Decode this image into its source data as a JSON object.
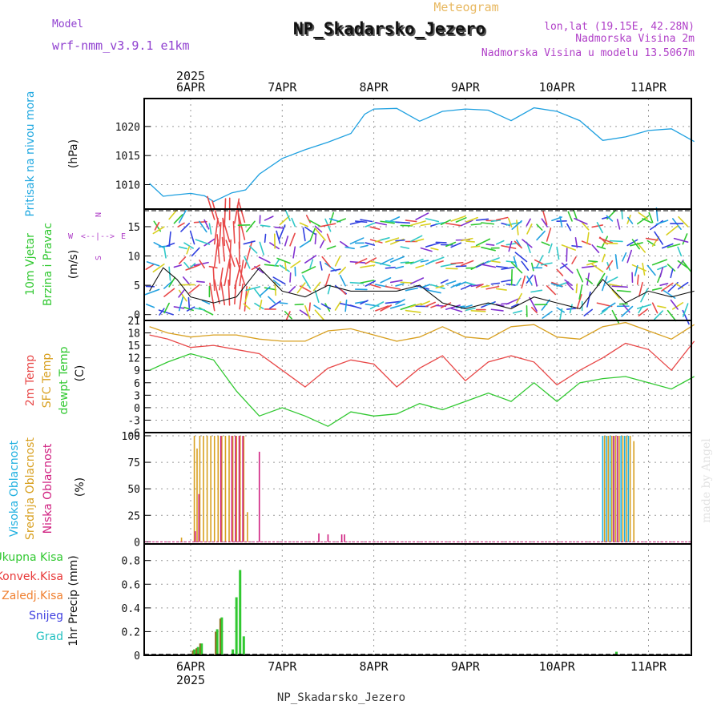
{
  "header": {
    "title": "NP_Skadarsko_Jezero",
    "meteogram": "Meteogram",
    "model_label": "Model",
    "model_name": "wrf-nmm_v3.9.1 e1km",
    "lonlat": "lon,lat (19.15E, 42.28N)",
    "elevation": "Nadmorska Visina 2m",
    "model_elevation": "Nadmorska Visina u modelu 13.5067m",
    "footer": "NP_Skadarsko_Jezero",
    "watermark": "made by Angel"
  },
  "axis": {
    "year": "2025",
    "days": [
      "6APR",
      "7APR",
      "8APR",
      "9APR",
      "10APR",
      "11APR"
    ]
  },
  "panels": {
    "pressure": {
      "label": "Pritisak na nivou mora",
      "unit": "(hPa)"
    },
    "wind": {
      "label1": "10m Vjetar",
      "label2": "Brzina i Pravac",
      "unit": "(m/s)",
      "compass": [
        "W",
        "<--|-->",
        "E",
        "S",
        "N"
      ]
    },
    "temp": {
      "labels": [
        "2m Temp",
        "SFC Temp",
        "dewpt Temp"
      ],
      "unit": "(C)"
    },
    "cloud": {
      "labels": [
        "Visoka Oblacnost",
        "Srednja Oblacnost",
        "Niska Oblacnost"
      ],
      "unit": "(%)"
    },
    "precip": {
      "labels": [
        "Ukupna Kisa",
        "Konvek.Kisa",
        "Zaledj.Kisa",
        "Snijeg",
        "Grad"
      ],
      "unit": "1hr Precip (mm)"
    }
  },
  "colors": {
    "pressure": "#1ea0e0",
    "temp2m": "#e84848",
    "tempSfc": "#d8a020",
    "dewpt": "#30c830",
    "cloudHigh": "#20b0e0",
    "cloudMid": "#d8a020",
    "cloudLow": "#d02080",
    "precipTotal": "#30c830",
    "precipConv": "#e83838",
    "precipFrz": "#f08030",
    "snow": "#4040e0",
    "grad": "#20c0c0",
    "title_purple": "#9040d0",
    "meteo": "#e8b860"
  },
  "chart_data": [
    {
      "type": "line",
      "title": "Pritisak na nivou mora",
      "ylabel": "(hPa)",
      "yticks": [
        1010,
        1015,
        1020
      ],
      "ylim": [
        1005.8,
        1024.8
      ],
      "xlim": [
        5.55,
        11.5
      ],
      "series": [
        {
          "name": "Pritisak na nivou mora",
          "x": [
            5.55,
            5.7,
            5.8,
            6.0,
            6.15,
            6.25,
            6.45,
            6.6,
            6.75,
            7.0,
            7.25,
            7.5,
            7.75,
            7.9,
            8.0,
            8.25,
            8.5,
            8.75,
            9.0,
            9.25,
            9.5,
            9.75,
            10.0,
            10.25,
            10.5,
            10.75,
            11.0,
            11.25,
            11.5
          ],
          "y": [
            1010.2,
            1008.0,
            1008.2,
            1008.5,
            1008.1,
            1007.1,
            1008.6,
            1009.1,
            1011.8,
            1014.5,
            1016.0,
            1017.3,
            1018.8,
            1022.1,
            1023.0,
            1023.1,
            1020.9,
            1022.6,
            1023.0,
            1022.8,
            1021.0,
            1023.2,
            1022.6,
            1021.0,
            1017.6,
            1018.2,
            1019.3,
            1019.6,
            1017.4
          ]
        }
      ]
    },
    {
      "type": "line",
      "title": "10m Vjetar Brzina i Pravac",
      "ylabel": "(m/s)",
      "yticks": [
        0,
        5,
        10,
        15
      ],
      "ylim": [
        -1,
        18
      ],
      "xlim": [
        5.55,
        11.5
      ],
      "series": [
        {
          "name": "10m Vjetar",
          "x": [
            5.55,
            5.7,
            5.85,
            6.0,
            6.25,
            6.5,
            6.75,
            7.0,
            7.25,
            7.5,
            7.75,
            8.0,
            8.25,
            8.5,
            8.75,
            9.0,
            9.25,
            9.5,
            9.75,
            10.0,
            10.25,
            10.5,
            10.75,
            11.0,
            11.25,
            11.5
          ],
          "y": [
            4,
            8,
            6,
            3,
            2,
            3,
            8,
            4,
            3,
            5,
            4,
            4,
            4,
            5,
            2,
            1,
            2,
            1,
            3,
            2,
            1,
            6,
            2,
            4,
            3,
            4
          ]
        }
      ]
    },
    {
      "type": "line",
      "title": "2m Temp / SFC Temp / dewpt Temp",
      "ylabel": "(C)",
      "yticks": [
        -6,
        -3,
        0,
        3,
        6,
        9,
        12,
        15,
        18,
        21
      ],
      "ylim": [
        -6,
        21
      ],
      "xlim": [
        5.55,
        11.5
      ],
      "series": [
        {
          "name": "2m Temp",
          "x": [
            5.55,
            5.75,
            6.0,
            6.25,
            6.5,
            6.75,
            7.0,
            7.25,
            7.5,
            7.75,
            8.0,
            8.25,
            8.5,
            8.75,
            9.0,
            9.25,
            9.5,
            9.75,
            10.0,
            10.25,
            10.5,
            10.75,
            11.0,
            11.25,
            11.5
          ],
          "y": [
            17.5,
            16.5,
            14.5,
            15.0,
            14.0,
            13.0,
            9.0,
            5.0,
            9.5,
            11.5,
            10.5,
            5.0,
            9.5,
            12.5,
            6.5,
            11.0,
            12.5,
            11.0,
            5.5,
            9.0,
            12.0,
            15.5,
            14.0,
            9.0,
            16.0
          ]
        },
        {
          "name": "SFC Temp",
          "x": [
            5.55,
            5.75,
            6.0,
            6.25,
            6.5,
            6.75,
            7.0,
            7.25,
            7.5,
            7.75,
            8.0,
            8.25,
            8.5,
            8.75,
            9.0,
            9.25,
            9.5,
            9.75,
            10.0,
            10.25,
            10.5,
            10.75,
            11.0,
            11.25,
            11.5
          ],
          "y": [
            19.5,
            18.0,
            17.0,
            17.5,
            17.5,
            16.5,
            16.0,
            16.0,
            18.5,
            19.0,
            17.5,
            16.0,
            17.0,
            19.5,
            17.0,
            16.5,
            19.5,
            20.0,
            17.0,
            16.5,
            19.5,
            20.5,
            18.5,
            16.5,
            20.0
          ]
        },
        {
          "name": "dewpt Temp",
          "x": [
            5.55,
            5.75,
            6.0,
            6.25,
            6.5,
            6.75,
            7.0,
            7.25,
            7.5,
            7.75,
            8.0,
            8.25,
            8.5,
            8.75,
            9.0,
            9.25,
            9.5,
            9.75,
            10.0,
            10.25,
            10.5,
            10.75,
            11.0,
            11.25,
            11.5
          ],
          "y": [
            9.0,
            11.0,
            13.0,
            11.5,
            4.0,
            -2.0,
            0.0,
            -2.0,
            -4.5,
            -1.0,
            -2.0,
            -1.5,
            1.0,
            -0.5,
            1.5,
            3.5,
            1.5,
            6.0,
            1.5,
            6.0,
            7.0,
            7.5,
            6.0,
            4.5,
            7.5
          ]
        }
      ]
    },
    {
      "type": "bar",
      "title": "Visoka / Srednja / Niska Oblacnost",
      "ylabel": "(%)",
      "yticks": [
        0,
        25,
        50,
        75,
        100
      ],
      "ylim": [
        -2,
        103
      ],
      "xlim": [
        5.55,
        11.5
      ],
      "series": [
        {
          "name": "Visoka Oblacnost",
          "x": [
            10.5,
            10.54,
            10.58,
            10.62,
            10.66,
            10.7,
            10.74,
            10.78
          ],
          "y": [
            100,
            100,
            100,
            100,
            100,
            100,
            100,
            100
          ]
        },
        {
          "name": "Srednja Oblacnost",
          "x": [
            5.9,
            6.04,
            6.07,
            6.1,
            6.14,
            6.18,
            6.22,
            6.26,
            6.3,
            6.34,
            6.38,
            6.42,
            6.46,
            6.5,
            6.54,
            6.58,
            6.62,
            10.52,
            10.56,
            10.6,
            10.64,
            10.68,
            10.72,
            10.76,
            10.8,
            10.84
          ],
          "y": [
            4,
            100,
            88,
            100,
            100,
            100,
            100,
            100,
            100,
            100,
            100,
            100,
            100,
            100,
            100,
            100,
            28,
            100,
            100,
            100,
            100,
            100,
            100,
            100,
            100,
            95
          ]
        },
        {
          "name": "Niska Oblacnost",
          "x": [
            6.05,
            6.09,
            6.33,
            6.45,
            6.49,
            6.53,
            6.57,
            6.75,
            7.4,
            7.5,
            7.65,
            7.68,
            10.62,
            10.66
          ],
          "y": [
            10,
            45,
            100,
            100,
            100,
            100,
            100,
            85,
            8,
            7,
            7,
            7,
            100,
            100
          ]
        }
      ]
    },
    {
      "type": "bar",
      "title": "1hr Precip",
      "ylabel": "1hr Precip (mm)",
      "yticks": [
        0,
        0.2,
        0.4,
        0.6,
        0.8
      ],
      "ylim": [
        0,
        0.94
      ],
      "xlim": [
        5.55,
        11.5
      ],
      "series": [
        {
          "name": "Ukupna Kisa",
          "x": [
            6.04,
            6.08,
            6.12,
            6.29,
            6.34,
            6.46,
            6.5,
            6.54,
            6.58,
            10.65
          ],
          "y": [
            0.05,
            0.07,
            0.1,
            0.22,
            0.32,
            0.05,
            0.49,
            0.72,
            0.16,
            0.03
          ]
        },
        {
          "name": "Konvek.Kisa",
          "x": [
            6.04,
            6.08,
            6.12,
            6.29,
            6.34
          ],
          "y": [
            0.04,
            0.06,
            0.1,
            0.2,
            0.31
          ]
        }
      ]
    }
  ]
}
